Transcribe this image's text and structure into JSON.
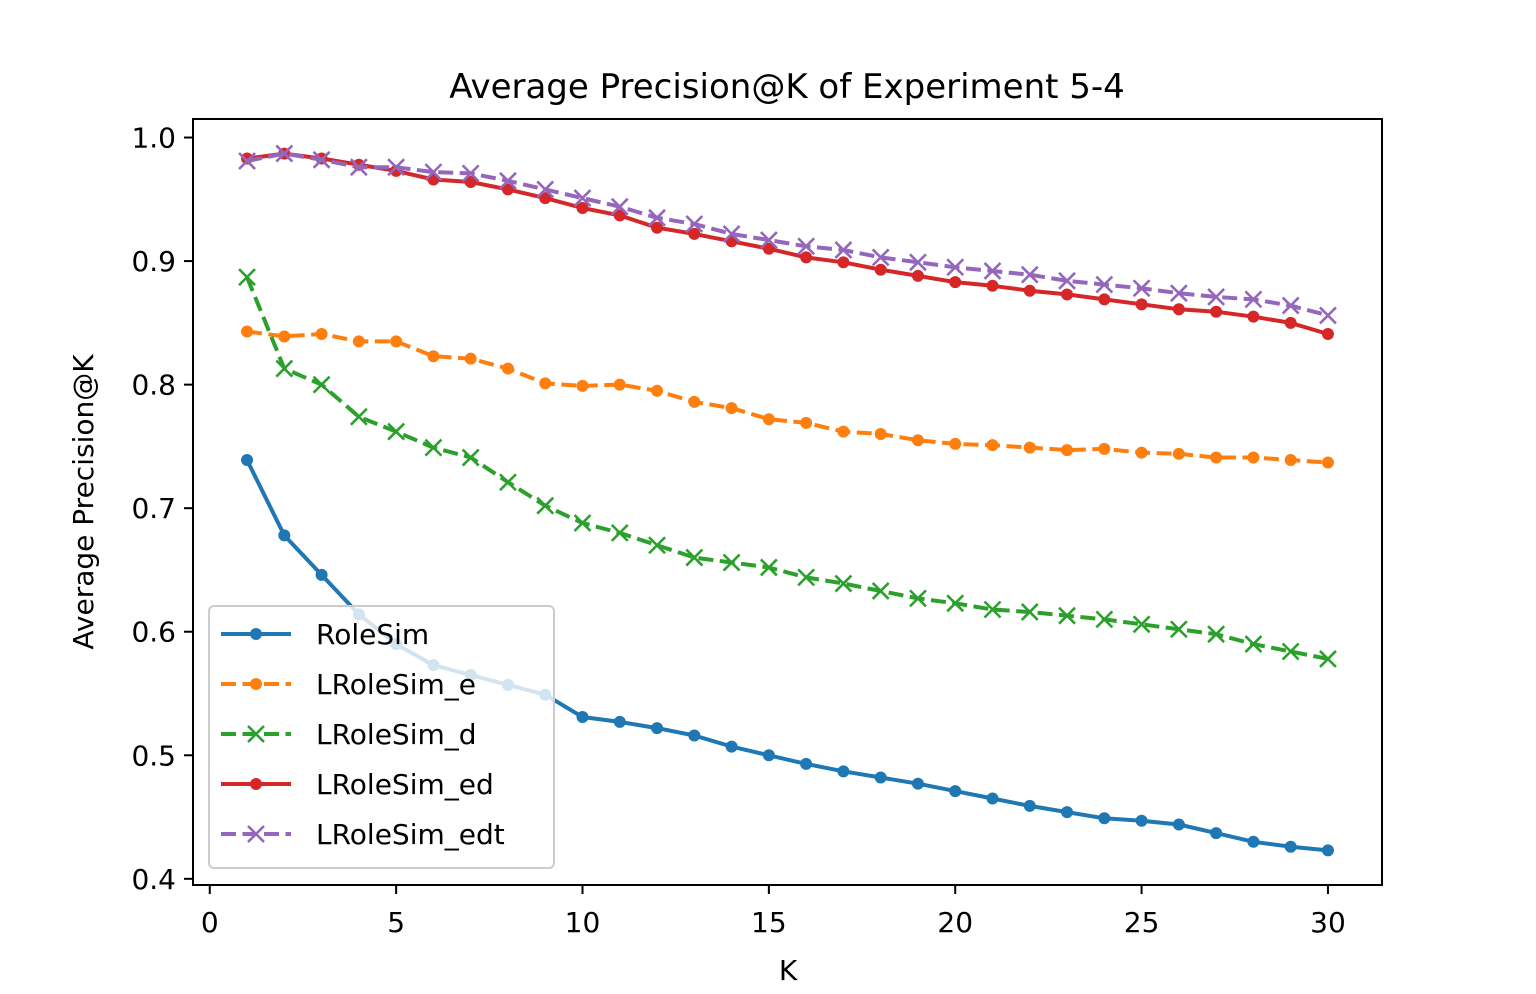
{
  "chart_data": {
    "type": "line",
    "title": "Average Precision@K of Experiment 5-4",
    "xlabel": "K",
    "ylabel": "Average Precision@K",
    "xlim": [
      -0.45,
      31.45
    ],
    "ylim": [
      0.395,
      1.015
    ],
    "xticks": [
      0,
      5,
      10,
      15,
      20,
      25,
      30
    ],
    "yticks": [
      0.4,
      0.5,
      0.6,
      0.7,
      0.8,
      0.9,
      1.0
    ],
    "xtick_labels": [
      "0",
      "5",
      "10",
      "15",
      "20",
      "25",
      "30"
    ],
    "ytick_labels": [
      "0.4",
      "0.5",
      "0.6",
      "0.7",
      "0.8",
      "0.9",
      "1.0"
    ],
    "grid": false,
    "legend_position": "lower-left",
    "x": [
      1,
      2,
      3,
      4,
      5,
      6,
      7,
      8,
      9,
      10,
      11,
      12,
      13,
      14,
      15,
      16,
      17,
      18,
      19,
      20,
      21,
      22,
      23,
      24,
      25,
      26,
      27,
      28,
      29,
      30
    ],
    "series": [
      {
        "name": "RoleSim",
        "color": "#1f77b4",
        "linestyle": "solid",
        "marker": "dot",
        "values": [
          0.739,
          0.678,
          0.646,
          0.614,
          0.59,
          0.573,
          0.565,
          0.557,
          0.549,
          0.531,
          0.527,
          0.522,
          0.516,
          0.507,
          0.5,
          0.493,
          0.487,
          0.482,
          0.477,
          0.471,
          0.465,
          0.459,
          0.454,
          0.449,
          0.447,
          0.444,
          0.437,
          0.43,
          0.426,
          0.423
        ]
      },
      {
        "name": "LRoleSim_e",
        "color": "#ff7f0e",
        "linestyle": "dashed",
        "marker": "dot",
        "values": [
          0.843,
          0.839,
          0.841,
          0.835,
          0.835,
          0.823,
          0.821,
          0.813,
          0.801,
          0.799,
          0.8,
          0.795,
          0.786,
          0.781,
          0.772,
          0.769,
          0.762,
          0.76,
          0.755,
          0.752,
          0.751,
          0.749,
          0.747,
          0.748,
          0.745,
          0.744,
          0.741,
          0.741,
          0.739,
          0.737
        ]
      },
      {
        "name": "LRoleSim_d",
        "color": "#2ca02c",
        "linestyle": "dashed",
        "marker": "x",
        "values": [
          0.887,
          0.813,
          0.8,
          0.774,
          0.762,
          0.749,
          0.741,
          0.721,
          0.702,
          0.688,
          0.68,
          0.67,
          0.66,
          0.656,
          0.652,
          0.644,
          0.639,
          0.633,
          0.627,
          0.623,
          0.618,
          0.616,
          0.613,
          0.61,
          0.606,
          0.602,
          0.598,
          0.59,
          0.584,
          0.578
        ]
      },
      {
        "name": "LRoleSim_ed",
        "color": "#d62728",
        "linestyle": "solid",
        "marker": "dot",
        "values": [
          0.983,
          0.987,
          0.983,
          0.978,
          0.973,
          0.966,
          0.964,
          0.958,
          0.951,
          0.943,
          0.937,
          0.927,
          0.922,
          0.916,
          0.91,
          0.903,
          0.899,
          0.893,
          0.888,
          0.883,
          0.88,
          0.876,
          0.873,
          0.869,
          0.865,
          0.861,
          0.859,
          0.855,
          0.85,
          0.841
        ]
      },
      {
        "name": "LRoleSim_edt",
        "color": "#9467bd",
        "linestyle": "dashed",
        "marker": "x",
        "values": [
          0.981,
          0.987,
          0.982,
          0.976,
          0.976,
          0.972,
          0.971,
          0.965,
          0.958,
          0.951,
          0.944,
          0.935,
          0.93,
          0.922,
          0.917,
          0.912,
          0.909,
          0.903,
          0.899,
          0.895,
          0.892,
          0.889,
          0.884,
          0.881,
          0.878,
          0.874,
          0.871,
          0.869,
          0.864,
          0.856
        ]
      }
    ]
  }
}
